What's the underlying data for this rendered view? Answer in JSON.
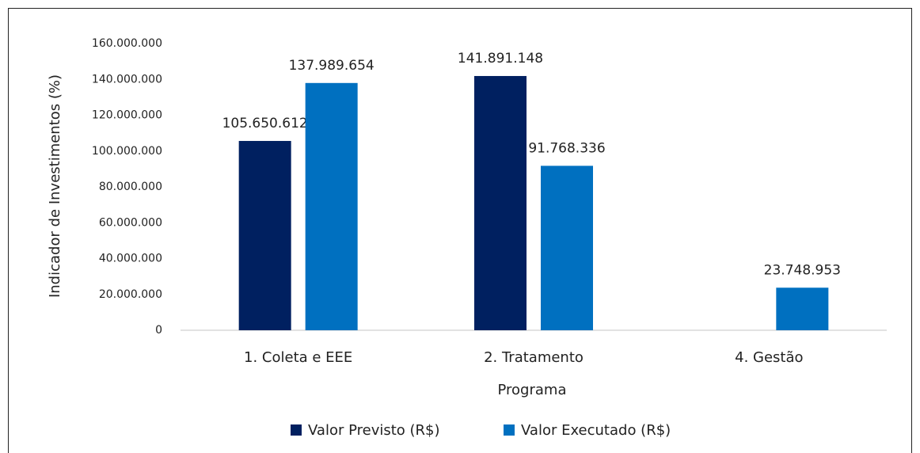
{
  "chart_data": {
    "type": "bar",
    "categories": [
      "1. Coleta e EEE",
      "2. Tratamento",
      "4. Gestão"
    ],
    "series": [
      {
        "name": "Valor Previsto (R$)",
        "color": "#002060",
        "values": [
          105650612,
          141891148,
          null
        ],
        "value_labels": [
          "105.650.612",
          "141.891.148",
          null
        ]
      },
      {
        "name": "Valor Executado (R$)",
        "color": "#0070c0",
        "values": [
          137989654,
          91768336,
          23748953
        ],
        "value_labels": [
          "137.989.654",
          "91.768.336",
          "23.748.953"
        ]
      }
    ],
    "x_label": "Programa",
    "y_label": "Indicador de Investimentos  (%)",
    "ylim": [
      0,
      160000000
    ],
    "yticks": [
      0,
      {
        "value": 20000000,
        "label": "20.000.000"
      },
      {
        "value": 40000000,
        "label": "40.000.000"
      },
      {
        "value": 60000000,
        "label": "60.000.000"
      },
      {
        "value": 80000000,
        "label": "80.000.000"
      },
      {
        "value": 100000000,
        "label": "100.000.000"
      },
      {
        "value": 120000000,
        "label": "120.000.000"
      },
      {
        "value": 140000000,
        "label": "140.000.000"
      },
      {
        "value": 160000000,
        "label": "160.000.000"
      }
    ],
    "grid": false,
    "legend": "bottom"
  }
}
